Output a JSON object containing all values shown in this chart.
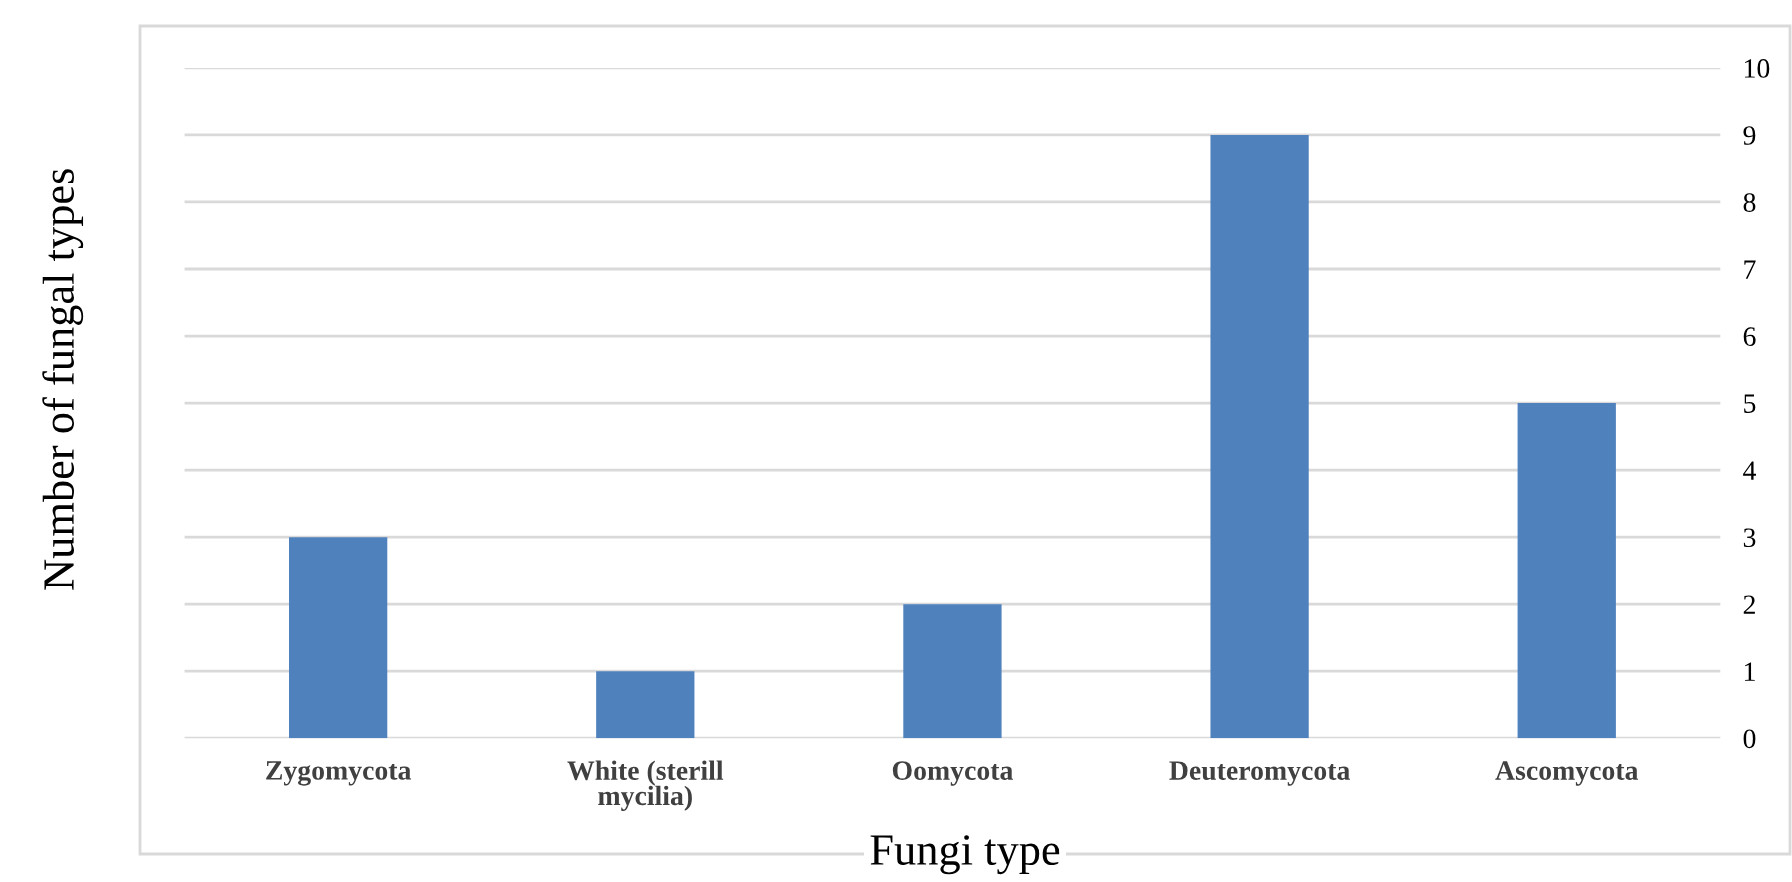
{
  "chart_data": {
    "type": "bar",
    "xlabel": "Fungi type",
    "ylabel": "Number of fungal types",
    "categories": [
      "Zygomycota",
      "White (sterill\nmycilia)",
      "Oomycota",
      "Deuteromycota",
      "Ascomycota"
    ],
    "values": [
      3,
      1,
      2,
      9,
      5
    ],
    "color": "#4f81bd",
    "ylim": [
      0,
      10
    ],
    "yticks": [
      0,
      1,
      2,
      3,
      4,
      5,
      6,
      7,
      8,
      9,
      10
    ],
    "grid": "y",
    "legend": false
  }
}
